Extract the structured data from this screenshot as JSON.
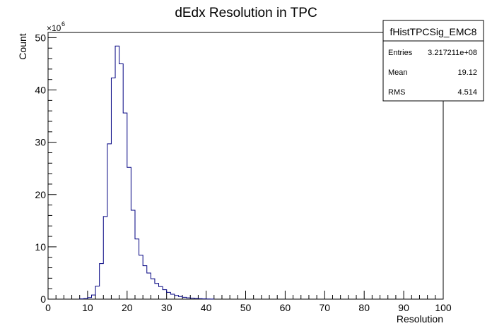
{
  "chart_data": {
    "type": "histogram",
    "title": "dEdx Resolution in TPC",
    "xlabel": "Resolution",
    "ylabel": "Count",
    "y_exponent_label": "×10",
    "y_exponent_power": "6",
    "xlim": [
      0,
      100
    ],
    "ylim": [
      0,
      51
    ],
    "x_ticks": [
      "0",
      "10",
      "20",
      "30",
      "40",
      "50",
      "60",
      "70",
      "80",
      "90",
      "100"
    ],
    "y_ticks": [
      "0",
      "10",
      "20",
      "30",
      "40",
      "50"
    ],
    "bin_width": 1,
    "bins_x_start": [
      8,
      9,
      10,
      11,
      12,
      13,
      14,
      15,
      16,
      17,
      18,
      19,
      20,
      21,
      22,
      23,
      24,
      25,
      26,
      27,
      28,
      29,
      30,
      31,
      32,
      33,
      34,
      35,
      36,
      37,
      38,
      39,
      40,
      41
    ],
    "values": [
      0.05,
      0.1,
      0.3,
      0.8,
      2.5,
      6.8,
      15.8,
      29.7,
      42.3,
      48.4,
      45.0,
      35.6,
      25.2,
      17.0,
      11.5,
      8.4,
      6.4,
      5.0,
      3.9,
      3.0,
      2.4,
      1.8,
      1.3,
      0.95,
      0.7,
      0.5,
      0.35,
      0.25,
      0.18,
      0.12,
      0.08,
      0.05,
      0.03,
      0.02
    ],
    "line_color": "#000080",
    "grid": false
  },
  "stats_box": {
    "name": "fHistTPCSig_EMC8",
    "rows": [
      {
        "label": "Entries",
        "value": "3.217211e+08"
      },
      {
        "label": "Mean",
        "value": "19.12"
      },
      {
        "label": "RMS",
        "value": "4.514"
      }
    ]
  }
}
